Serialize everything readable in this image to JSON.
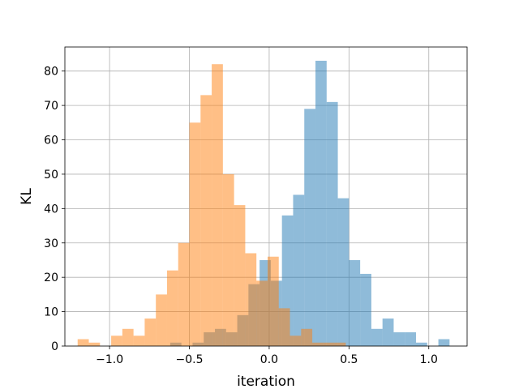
{
  "chart_data": {
    "type": "histogram",
    "xlabel": "iteration",
    "ylabel": "KL",
    "xlim": [
      -1.28,
      1.24
    ],
    "ylim": [
      0,
      87
    ],
    "grid": true,
    "x_ticks": [
      -1.0,
      -0.5,
      0.0,
      0.5,
      1.0
    ],
    "x_tick_labels": [
      "−1.0",
      "−0.5",
      "0.0",
      "0.5",
      "1.0"
    ],
    "y_ticks": [
      0,
      10,
      20,
      30,
      40,
      50,
      60,
      70,
      80
    ],
    "y_tick_labels": [
      "0",
      "10",
      "20",
      "30",
      "40",
      "50",
      "60",
      "70",
      "80"
    ],
    "series": [
      {
        "color": "#1f77b4",
        "alpha": 0.5,
        "bins": [
          {
            "x0": -0.62,
            "x1": -0.55,
            "value": 1
          },
          {
            "x0": -0.55,
            "x1": -0.48,
            "value": 0
          },
          {
            "x0": -0.48,
            "x1": -0.41,
            "value": 1
          },
          {
            "x0": -0.41,
            "x1": -0.34,
            "value": 4
          },
          {
            "x0": -0.34,
            "x1": -0.27,
            "value": 5
          },
          {
            "x0": -0.27,
            "x1": -0.2,
            "value": 4
          },
          {
            "x0": -0.2,
            "x1": -0.13,
            "value": 9
          },
          {
            "x0": -0.13,
            "x1": -0.06,
            "value": 18
          },
          {
            "x0": -0.06,
            "x1": 0.01,
            "value": 25
          },
          {
            "x0": 0.01,
            "x1": 0.08,
            "value": 19
          },
          {
            "x0": 0.08,
            "x1": 0.15,
            "value": 38
          },
          {
            "x0": 0.15,
            "x1": 0.22,
            "value": 44
          },
          {
            "x0": 0.22,
            "x1": 0.29,
            "value": 69
          },
          {
            "x0": 0.29,
            "x1": 0.36,
            "value": 83
          },
          {
            "x0": 0.36,
            "x1": 0.43,
            "value": 71
          },
          {
            "x0": 0.43,
            "x1": 0.5,
            "value": 43
          },
          {
            "x0": 0.5,
            "x1": 0.57,
            "value": 25
          },
          {
            "x0": 0.57,
            "x1": 0.64,
            "value": 21
          },
          {
            "x0": 0.64,
            "x1": 0.71,
            "value": 5
          },
          {
            "x0": 0.71,
            "x1": 0.78,
            "value": 8
          },
          {
            "x0": 0.78,
            "x1": 0.85,
            "value": 4
          },
          {
            "x0": 0.85,
            "x1": 0.92,
            "value": 4
          },
          {
            "x0": 0.92,
            "x1": 0.99,
            "value": 1
          },
          {
            "x0": 0.99,
            "x1": 1.06,
            "value": 0
          },
          {
            "x0": 1.06,
            "x1": 1.13,
            "value": 2
          }
        ]
      },
      {
        "color": "#ff7f0e",
        "alpha": 0.5,
        "bins": [
          {
            "x0": -1.2,
            "x1": -1.13,
            "value": 2
          },
          {
            "x0": -1.13,
            "x1": -1.06,
            "value": 1
          },
          {
            "x0": -1.06,
            "x1": -0.99,
            "value": 0
          },
          {
            "x0": -0.99,
            "x1": -0.92,
            "value": 3
          },
          {
            "x0": -0.92,
            "x1": -0.85,
            "value": 5
          },
          {
            "x0": -0.85,
            "x1": -0.78,
            "value": 3
          },
          {
            "x0": -0.78,
            "x1": -0.71,
            "value": 8
          },
          {
            "x0": -0.71,
            "x1": -0.64,
            "value": 15
          },
          {
            "x0": -0.64,
            "x1": -0.57,
            "value": 22
          },
          {
            "x0": -0.57,
            "x1": -0.5,
            "value": 30
          },
          {
            "x0": -0.5,
            "x1": -0.43,
            "value": 65
          },
          {
            "x0": -0.43,
            "x1": -0.36,
            "value": 73
          },
          {
            "x0": -0.36,
            "x1": -0.29,
            "value": 82
          },
          {
            "x0": -0.29,
            "x1": -0.22,
            "value": 50
          },
          {
            "x0": -0.22,
            "x1": -0.15,
            "value": 41
          },
          {
            "x0": -0.15,
            "x1": -0.08,
            "value": 27
          },
          {
            "x0": -0.08,
            "x1": -0.01,
            "value": 19
          },
          {
            "x0": -0.01,
            "x1": 0.06,
            "value": 26
          },
          {
            "x0": 0.06,
            "x1": 0.13,
            "value": 11
          },
          {
            "x0": 0.13,
            "x1": 0.2,
            "value": 3
          },
          {
            "x0": 0.2,
            "x1": 0.27,
            "value": 5
          },
          {
            "x0": 0.27,
            "x1": 0.34,
            "value": 1
          },
          {
            "x0": 0.34,
            "x1": 0.41,
            "value": 1
          },
          {
            "x0": 0.41,
            "x1": 0.48,
            "value": 1
          }
        ]
      }
    ]
  }
}
